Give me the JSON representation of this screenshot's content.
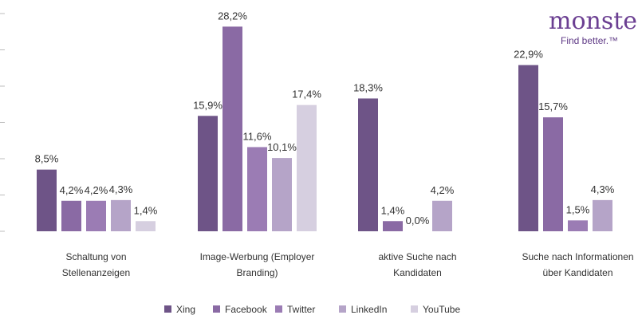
{
  "brand": {
    "logo_word": "monster",
    "tagline": "Find better.™"
  },
  "chart_data": {
    "type": "bar",
    "categories": [
      [
        "Schaltung von",
        "Stellenanzeigen"
      ],
      [
        "Image-Werbung (Employer",
        "Branding)"
      ],
      [
        "aktive Suche nach",
        "Kandidaten"
      ],
      [
        "Suche nach Informationen",
        "über Kandidaten"
      ]
    ],
    "series": [
      {
        "name": "Xing",
        "color": "#6e5487",
        "values": [
          8.5,
          15.9,
          18.3,
          22.9
        ],
        "labels": [
          "8,5%",
          "15,9%",
          "18,3%",
          "22,9%"
        ]
      },
      {
        "name": "Facebook",
        "color": "#8a6aa4",
        "values": [
          4.2,
          28.2,
          1.4,
          15.7
        ],
        "labels": [
          "4,2%",
          "28,2%",
          "1,4%",
          "15,7%"
        ]
      },
      {
        "name": "Twitter",
        "color": "#9b7cb4",
        "values": [
          4.2,
          11.6,
          0.0,
          1.5
        ],
        "labels": [
          "4,2%",
          "11,6%",
          "0,0%",
          "1,5%"
        ]
      },
      {
        "name": "LinkedIn",
        "color": "#b5a4c8",
        "values": [
          4.3,
          10.1,
          4.2,
          4.3
        ],
        "labels": [
          "4,3%",
          "10,1%",
          "4,2%",
          "4,3%"
        ]
      },
      {
        "name": "YouTube",
        "color": "#d6cfe0",
        "values": [
          1.4,
          17.4,
          null,
          null
        ],
        "labels": [
          "1,4%",
          "17,4%",
          "",
          ""
        ]
      }
    ],
    "ylim": [
      0,
      30
    ],
    "legend_position": "bottom",
    "grid": false
  }
}
